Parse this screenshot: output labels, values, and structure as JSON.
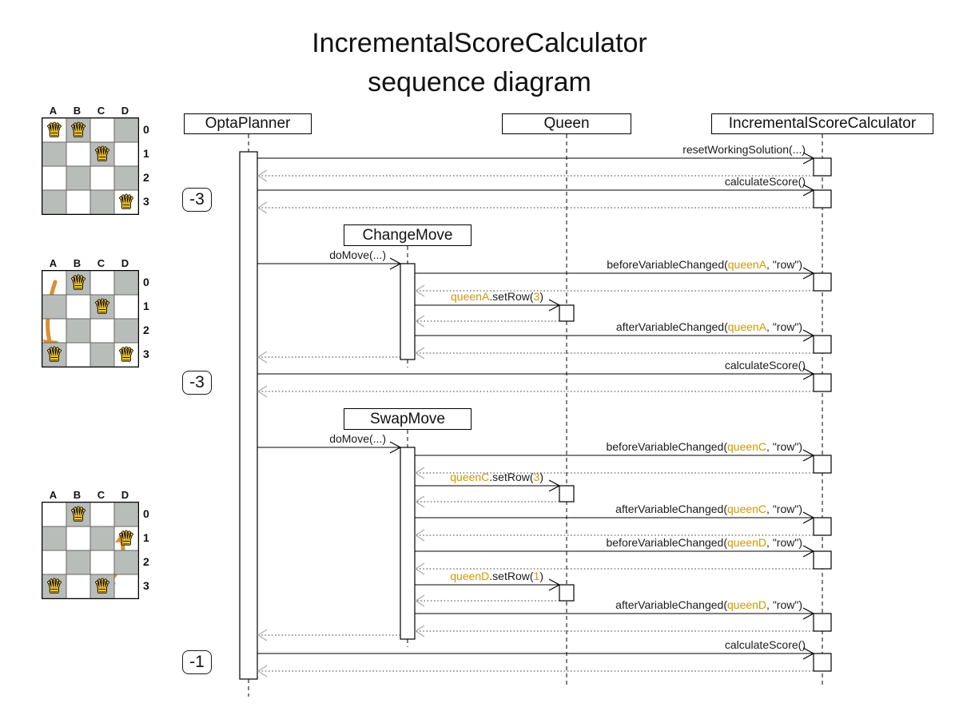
{
  "title": {
    "line1": "IncrementalScoreCalculator",
    "line2": "sequence diagram"
  },
  "lifelines": {
    "optaplanner": "OptaPlanner",
    "queen": "Queen",
    "calculator": "IncrementalScoreCalculator"
  },
  "moves": {
    "change": "ChangeMove",
    "swap": "SwapMove"
  },
  "badges": {
    "first": "-3",
    "second": "-3",
    "third": "-1"
  },
  "messages": {
    "reset": {
      "text": "resetWorkingSolution(...)"
    },
    "calc1": {
      "text": "calculateScore()"
    },
    "domove1": {
      "text": "doMove(...)"
    },
    "beforeA": {
      "pre": "beforeVariableChanged(",
      "arg": "queenA",
      "post": ", \"row\")"
    },
    "setrowA": {
      "arg": "queenA",
      "mid": ".setRow(",
      "num": "3",
      "post": ")"
    },
    "afterA": {
      "pre": "afterVariableChanged(",
      "arg": "queenA",
      "post": ", \"row\")"
    },
    "calc2": {
      "text": "calculateScore()"
    },
    "domove2": {
      "text": "doMove(...)"
    },
    "beforeC": {
      "pre": "beforeVariableChanged(",
      "arg": "queenC",
      "post": ", \"row\")"
    },
    "setrowC": {
      "arg": "queenC",
      "mid": ".setRow(",
      "num": "3",
      "post": ")"
    },
    "afterC": {
      "pre": "afterVariableChanged(",
      "arg": "queenC",
      "post": ", \"row\")"
    },
    "beforeD": {
      "pre": "beforeVariableChanged(",
      "arg": "queenD",
      "post": ", \"row\")"
    },
    "setrowD": {
      "arg": "queenD",
      "mid": ".setRow(",
      "num": "1",
      "post": ")"
    },
    "afterD": {
      "pre": "afterVariableChanged(",
      "arg": "queenD",
      "post": ", \"row\")"
    },
    "calc3": {
      "text": "calculateScore()"
    }
  },
  "boards": [
    {
      "cols": [
        "A",
        "B",
        "C",
        "D"
      ],
      "rows": [
        "0",
        "1",
        "2",
        "3"
      ],
      "queens": [
        [
          0,
          0
        ],
        [
          1,
          0
        ],
        [
          2,
          1
        ],
        [
          3,
          3
        ]
      ]
    },
    {
      "cols": [
        "A",
        "B",
        "C",
        "D"
      ],
      "rows": [
        "0",
        "1",
        "2",
        "3"
      ],
      "queens": [
        [
          1,
          0
        ],
        [
          2,
          1
        ],
        [
          0,
          3
        ],
        [
          3,
          3
        ]
      ]
    },
    {
      "cols": [
        "A",
        "B",
        "C",
        "D"
      ],
      "rows": [
        "0",
        "1",
        "2",
        "3"
      ],
      "queens": [
        [
          1,
          0
        ],
        [
          3,
          1
        ],
        [
          0,
          3
        ],
        [
          2,
          3
        ]
      ]
    }
  ],
  "board_meta": {
    "queen_glyph": "♛"
  },
  "colors": {
    "accent_gold": "#cc9900",
    "dark_cell": "#b9bdb9",
    "queen_fill": "#f2c230",
    "move_arrow": "#d98f33",
    "return_arrow": "#b6b6b6"
  }
}
